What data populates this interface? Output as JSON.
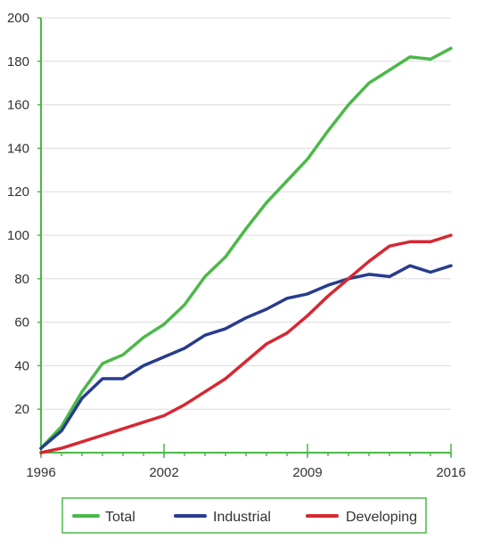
{
  "chart_data": {
    "type": "line",
    "x": [
      1996,
      1997,
      1998,
      1999,
      2000,
      2001,
      2002,
      2003,
      2004,
      2005,
      2006,
      2007,
      2008,
      2009,
      2010,
      2011,
      2012,
      2013,
      2014,
      2015,
      2016
    ],
    "x_tick_values": [
      1996,
      2002,
      2009,
      2016
    ],
    "x_tick_labels": [
      "1996",
      "2002",
      "2009",
      "2016"
    ],
    "y_tick_values": [
      20,
      40,
      60,
      80,
      100,
      120,
      140,
      160,
      180,
      200
    ],
    "y_tick_labels": [
      "20",
      "40",
      "60",
      "80",
      "100",
      "120",
      "140",
      "160",
      "180",
      "200"
    ],
    "xlim": [
      1996,
      2016
    ],
    "ylim": [
      0,
      200
    ],
    "grid": "horizontal",
    "legend_position": "bottom",
    "series": [
      {
        "name": "Total",
        "color": "#4cb848",
        "values": [
          2,
          12,
          28,
          41,
          45,
          53,
          59,
          68,
          81,
          90,
          103,
          115,
          125,
          135,
          148,
          160,
          170,
          176,
          182,
          181,
          186
        ]
      },
      {
        "name": "Industrial",
        "color": "#283c8e",
        "values": [
          2,
          10,
          25,
          34,
          34,
          40,
          44,
          48,
          54,
          57,
          62,
          66,
          71,
          73,
          77,
          80,
          82,
          81,
          86,
          83,
          86
        ]
      },
      {
        "name": "Developing",
        "color": "#d62832",
        "values": [
          0,
          2,
          5,
          8,
          11,
          14,
          17,
          22,
          28,
          34,
          42,
          50,
          55,
          63,
          72,
          80,
          88,
          95,
          97,
          97,
          100
        ]
      }
    ]
  }
}
